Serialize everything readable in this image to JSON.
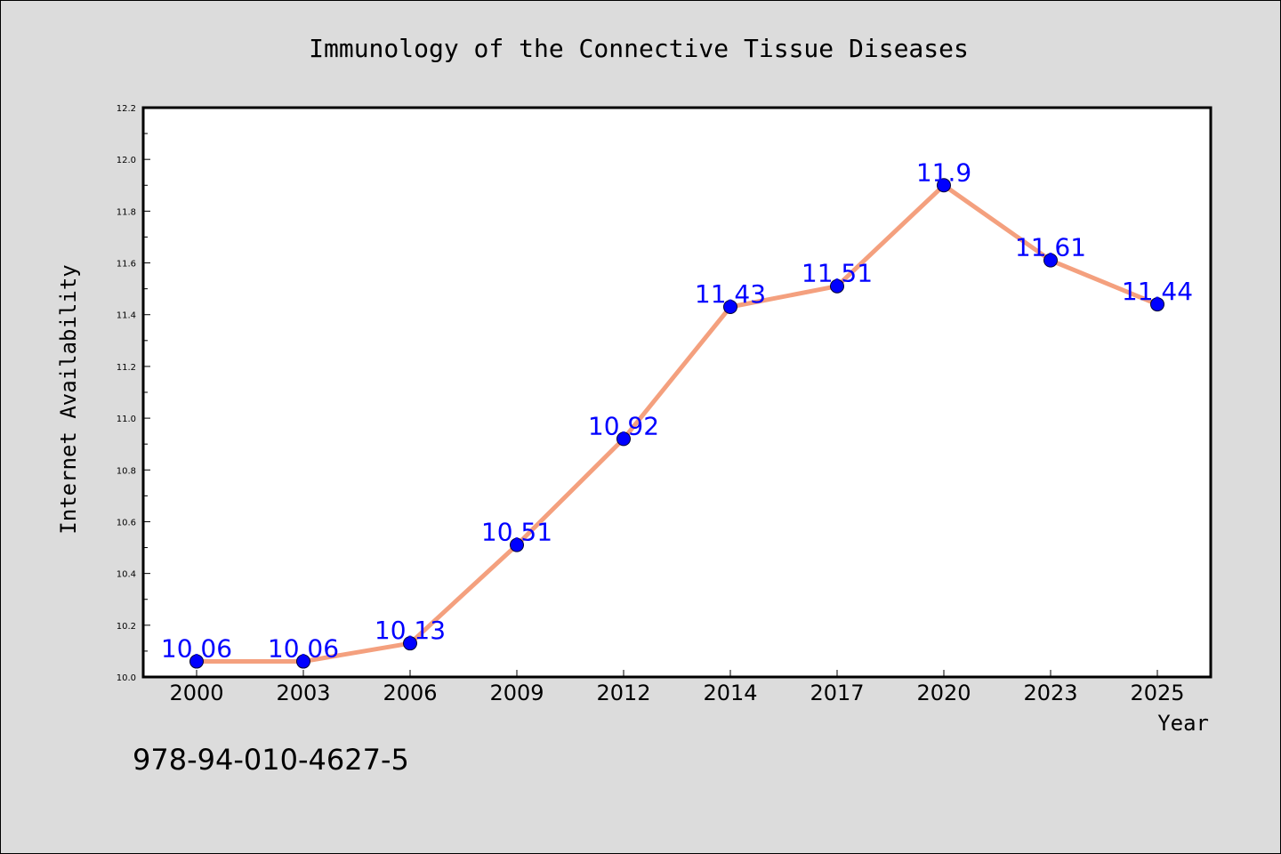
{
  "chart_data": {
    "type": "line",
    "title": "Immunology of the Connective Tissue Diseases",
    "xlabel": "Year",
    "ylabel": "Internet Availability",
    "categories": [
      "2000",
      "2003",
      "2006",
      "2009",
      "2012",
      "2014",
      "2017",
      "2020",
      "2023",
      "2025"
    ],
    "values": [
      10.06,
      10.06,
      10.13,
      10.51,
      10.92,
      11.43,
      11.51,
      11.9,
      11.61,
      11.44
    ],
    "data_labels": [
      "10.06",
      "10.06",
      "10.13",
      "10.51",
      "10.92",
      "11.43",
      "11.51",
      "11.9",
      "11.61",
      "11.44"
    ],
    "ylim": [
      10.0,
      12.2
    ],
    "y_ticks": [
      "10.0",
      "10.2",
      "10.4",
      "10.6",
      "10.8",
      "11.0",
      "11.2",
      "11.4",
      "11.6",
      "11.8",
      "12.0",
      "12.2"
    ],
    "grid": false,
    "colors": {
      "line": "#f4a07e",
      "marker": "#0000ff",
      "label": "#0000ff",
      "background": "#dcdcdc",
      "plot_background": "#ffffff"
    }
  },
  "footnote": "978-94-010-4627-5"
}
